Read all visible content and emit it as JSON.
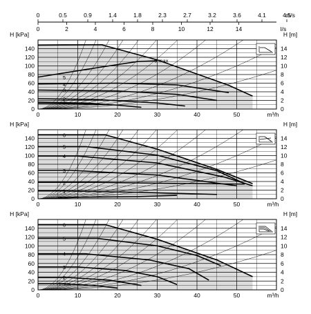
{
  "top_axis": {
    "velocity_unit": "m/s",
    "velocity_ticks": [
      "0",
      "0.5",
      "0.9",
      "1.4",
      "1.8",
      "2.3",
      "2.7",
      "3.2",
      "3.6",
      "4.1",
      "4.5"
    ],
    "flow_unit": "l/s",
    "flow_ticks": [
      "0",
      "2",
      "4",
      "6",
      "8",
      "10",
      "12",
      "14"
    ]
  },
  "chart_data": [
    {
      "type": "line",
      "panel": "constant-curve",
      "control_icon": "constant-curve-icon",
      "xlabel": "m³/h",
      "ylabel_left": "H [kPa]",
      "ylabel_right": "H [m]",
      "xlim": [
        0,
        60
      ],
      "ylim": [
        0,
        160
      ],
      "x_ticks": [
        "0",
        "10",
        "20",
        "30",
        "40",
        "50"
      ],
      "y_ticks_left": [
        "0",
        "20",
        "40",
        "60",
        "80",
        "100",
        "120",
        "140"
      ],
      "y_ticks_right": [
        "0",
        "2",
        "4",
        "6",
        "8",
        "10",
        "12",
        "14"
      ],
      "grid": true,
      "series": [
        {
          "name": "1",
          "points": [
            [
              0,
              16
            ],
            [
              12,
              14
            ],
            [
              20,
              9
            ],
            [
              26,
              4
            ]
          ]
        },
        {
          "name": "2",
          "points": [
            [
              0,
              24
            ],
            [
              15,
              22
            ],
            [
              30,
              14
            ],
            [
              37,
              7
            ]
          ]
        },
        {
          "name": "3",
          "points": [
            [
              0,
              44
            ],
            [
              20,
              42
            ],
            [
              35,
              34
            ],
            [
              45,
              20
            ]
          ]
        },
        {
          "name": "4",
          "points": [
            [
              0,
              58
            ],
            [
              20,
              60
            ],
            [
              35,
              56
            ],
            [
              48,
              38
            ]
          ]
        },
        {
          "name": "5",
          "points": [
            [
              0,
              74
            ],
            [
              15,
              96
            ],
            [
              25,
              110
            ],
            [
              30,
              112
            ]
          ]
        },
        {
          "name": "6 max",
          "points": [
            [
              0,
              148
            ],
            [
              16,
              149
            ],
            [
              30,
              114
            ],
            [
              48,
              55
            ],
            [
              54,
              30
            ]
          ]
        },
        {
          "name": "",
          "points": [
            [
              0,
              13
            ],
            [
              10,
              12
            ],
            [
              18,
              10
            ]
          ]
        }
      ]
    },
    {
      "type": "line",
      "panel": "proportional-pressure",
      "control_icon": "proportional-pressure-icon",
      "xlabel": "m³/h",
      "ylabel_left": "H [kPa]",
      "ylabel_right": "H [m]",
      "xlim": [
        0,
        60
      ],
      "ylim": [
        0,
        160
      ],
      "x_ticks": [
        "0",
        "10",
        "20",
        "30",
        "40",
        "50"
      ],
      "y_ticks_left": [
        "0",
        "20",
        "40",
        "60",
        "80",
        "100",
        "120",
        "140"
      ],
      "y_ticks_right": [
        "0",
        "2",
        "4",
        "6",
        "8",
        "10",
        "12",
        "14"
      ],
      "grid": true,
      "series": [
        {
          "name": "6",
          "points": [
            [
              0,
              148
            ],
            [
              17,
              148
            ],
            [
              30,
              115
            ],
            [
              45,
              68
            ],
            [
              54,
              35
            ]
          ]
        },
        {
          "name": "5",
          "points": [
            [
              0,
              121
            ],
            [
              12,
              121
            ],
            [
              30,
              101
            ],
            [
              45,
              65
            ],
            [
              52,
              35
            ]
          ]
        },
        {
          "name": "4",
          "points": [
            [
              0,
              99
            ],
            [
              10,
              99
            ],
            [
              30,
              83
            ],
            [
              47,
              50
            ],
            [
              54,
              30
            ]
          ]
        },
        {
          "name": "3",
          "points": [
            [
              0,
              66
            ],
            [
              8,
              66
            ],
            [
              30,
              55
            ],
            [
              50,
              30
            ]
          ]
        },
        {
          "name": "2",
          "points": [
            [
              0,
              38
            ],
            [
              15,
              38
            ],
            [
              30,
              36
            ],
            [
              52,
              34
            ]
          ]
        },
        {
          "name": "1",
          "points": [
            [
              0,
              18
            ],
            [
              6,
              18
            ],
            [
              25,
              15
            ],
            [
              45,
              10
            ]
          ]
        },
        {
          "name": "",
          "points": [
            [
              5,
              3
            ],
            [
              25,
              5
            ],
            [
              35,
              8
            ]
          ]
        }
      ]
    },
    {
      "type": "line",
      "panel": "constant-pressure",
      "control_icon": "constant-pressure-icon",
      "xlabel": "m³/h",
      "ylabel_left": "H [kPa]",
      "ylabel_right": "H [m]",
      "xlim": [
        0,
        60
      ],
      "ylim": [
        0,
        160
      ],
      "x_ticks": [
        "0",
        "10",
        "20",
        "30",
        "40",
        "50"
      ],
      "y_ticks_left": [
        "0",
        "20",
        "40",
        "60",
        "80",
        "100",
        "120",
        "140"
      ],
      "y_ticks_right": [
        "0",
        "2",
        "4",
        "6",
        "8",
        "10",
        "12",
        "14"
      ],
      "grid": true,
      "series": [
        {
          "name": "6",
          "points": [
            [
              0,
              148
            ],
            [
              17,
              148
            ],
            [
              30,
              115
            ],
            [
              45,
              68
            ],
            [
              54,
              30
            ]
          ]
        },
        {
          "name": "5",
          "points": [
            [
              0,
              117
            ],
            [
              15,
              117
            ],
            [
              30,
              100
            ],
            [
              40,
              78
            ],
            [
              46,
              55
            ]
          ]
        },
        {
          "name": "4",
          "points": [
            [
              0,
              82
            ],
            [
              12,
              82
            ],
            [
              28,
              68
            ],
            [
              38,
              48
            ],
            [
              43,
              22
            ]
          ]
        },
        {
          "name": "3",
          "points": [
            [
              0,
              52
            ],
            [
              10,
              52
            ],
            [
              22,
              44
            ],
            [
              30,
              30
            ],
            [
              35,
              12
            ]
          ]
        },
        {
          "name": "2",
          "points": [
            [
              0,
              28
            ],
            [
              8,
              28
            ],
            [
              18,
              22
            ],
            [
              26,
              10
            ]
          ]
        },
        {
          "name": "1 min",
          "points": [
            [
              0,
              14
            ],
            [
              6,
              14
            ],
            [
              14,
              10
            ],
            [
              20,
              4
            ]
          ]
        }
      ]
    }
  ]
}
